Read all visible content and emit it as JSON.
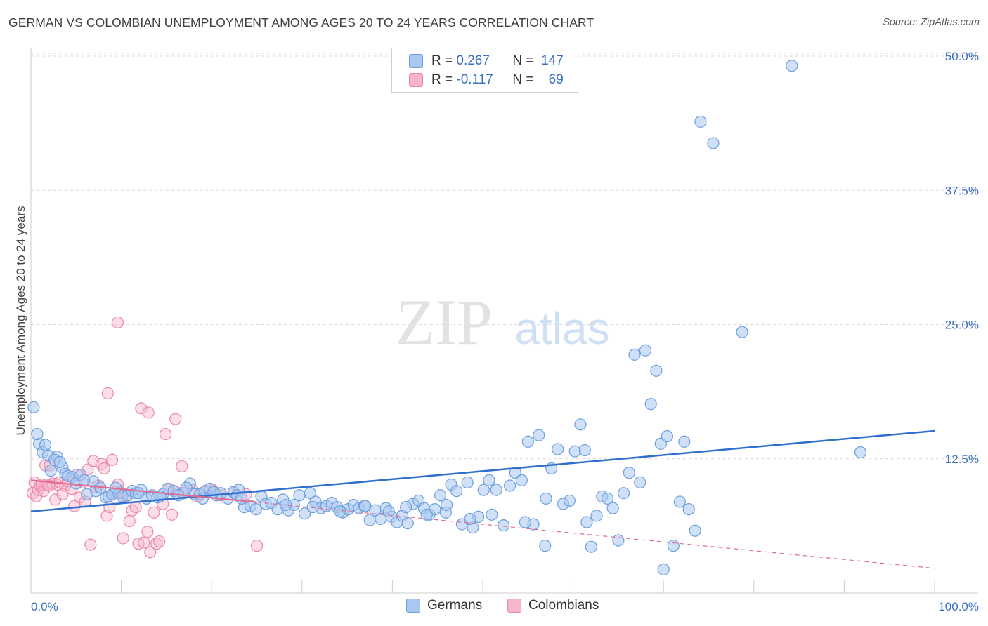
{
  "title": "GERMAN VS COLOMBIAN UNEMPLOYMENT AMONG AGES 20 TO 24 YEARS CORRELATION CHART",
  "source": "Source: ZipAtlas.com",
  "watermark": {
    "zip": "ZIP",
    "atlas": "atlas"
  },
  "legend": {
    "rows": [
      {
        "r_label": "R =",
        "r_value": "0.267",
        "n_label": "N =",
        "n_value": "147"
      },
      {
        "r_label": "R =",
        "r_value": "-0.117",
        "n_label": "N =",
        "n_value": "69"
      }
    ]
  },
  "colors": {
    "germans_fill": "#a9c8f0",
    "germans_stroke": "#6d9fe0",
    "germans_line": "#2f6fd0",
    "colombians_fill": "#f7b6ca",
    "colombians_stroke": "#ec87a8",
    "colombians_line": "#e06a90",
    "axis_label": "#3a6fc4",
    "grid": "#d9d9d9"
  },
  "chart_data": {
    "type": "scatter",
    "title": "GERMAN VS COLOMBIAN UNEMPLOYMENT AMONG AGES 20 TO 24 YEARS CORRELATION CHART",
    "xlabel": "",
    "ylabel": "Unemployment Among Ages 20 to 24 years",
    "xlim": [
      0,
      100
    ],
    "ylim": [
      0,
      50
    ],
    "x_tick_labels": [
      "0.0%",
      "100.0%"
    ],
    "y_ticks": [
      12.5,
      25.0,
      37.5,
      50.0
    ],
    "y_tick_labels": [
      "12.5%",
      "25.0%",
      "37.5%",
      "50.0%"
    ],
    "grid": true,
    "legend_position": "bottom-center",
    "series": [
      {
        "name": "Germans",
        "r": 0.267,
        "n": 147,
        "trend": {
          "x": [
            0,
            100
          ],
          "y": [
            7.6,
            15.1
          ]
        },
        "points": [
          [
            0.3,
            17.3
          ],
          [
            0.9,
            13.9
          ],
          [
            1.3,
            13.1
          ],
          [
            1.9,
            12.8
          ],
          [
            2.2,
            11.4
          ],
          [
            2.9,
            12.7
          ],
          [
            3.5,
            11.7
          ],
          [
            3.8,
            11.1
          ],
          [
            4.1,
            10.9
          ],
          [
            4.6,
            10.8
          ],
          [
            5.0,
            10.2
          ],
          [
            5.5,
            11.0
          ],
          [
            6.2,
            9.2
          ],
          [
            6.9,
            10.4
          ],
          [
            7.2,
            9.5
          ],
          [
            7.7,
            9.8
          ],
          [
            8.3,
            8.9
          ],
          [
            8.6,
            9.0
          ],
          [
            9.0,
            9.2
          ],
          [
            9.7,
            9.3
          ],
          [
            10.1,
            9.0
          ],
          [
            10.7,
            9.1
          ],
          [
            11.2,
            9.5
          ],
          [
            11.6,
            9.3
          ],
          [
            12.2,
            9.6
          ],
          [
            12.8,
            8.8
          ],
          [
            13.4,
            9.1
          ],
          [
            14.0,
            8.9
          ],
          [
            14.6,
            9.2
          ],
          [
            15.1,
            9.7
          ],
          [
            15.8,
            9.5
          ],
          [
            16.3,
            9.1
          ],
          [
            16.9,
            9.3
          ],
          [
            17.6,
            10.2
          ],
          [
            18.1,
            9.2
          ],
          [
            18.7,
            9.2
          ],
          [
            19.3,
            9.5
          ],
          [
            19.8,
            9.7
          ],
          [
            20.5,
            9.1
          ],
          [
            21.0,
            9.3
          ],
          [
            21.8,
            8.8
          ],
          [
            22.4,
            9.4
          ],
          [
            23.0,
            9.6
          ],
          [
            23.6,
            8.0
          ],
          [
            24.3,
            8.1
          ],
          [
            24.9,
            7.8
          ],
          [
            25.5,
            9.0
          ],
          [
            26.0,
            8.3
          ],
          [
            26.6,
            8.4
          ],
          [
            27.3,
            7.8
          ],
          [
            27.9,
            8.7
          ],
          [
            28.5,
            7.7
          ],
          [
            29.1,
            8.2
          ],
          [
            29.7,
            9.1
          ],
          [
            30.3,
            7.4
          ],
          [
            30.9,
            9.3
          ],
          [
            31.5,
            8.5
          ],
          [
            32.1,
            7.9
          ],
          [
            32.7,
            8.1
          ],
          [
            33.3,
            8.4
          ],
          [
            33.9,
            8.0
          ],
          [
            34.5,
            7.5
          ],
          [
            35.1,
            7.8
          ],
          [
            35.7,
            8.2
          ],
          [
            36.3,
            7.9
          ],
          [
            36.9,
            8.1
          ],
          [
            37.5,
            6.8
          ],
          [
            38.1,
            7.7
          ],
          [
            38.7,
            6.9
          ],
          [
            39.3,
            7.9
          ],
          [
            39.9,
            7.1
          ],
          [
            40.5,
            6.6
          ],
          [
            41.1,
            7.2
          ],
          [
            41.7,
            6.5
          ],
          [
            42.3,
            8.3
          ],
          [
            42.9,
            8.6
          ],
          [
            43.5,
            7.9
          ],
          [
            44.1,
            7.3
          ],
          [
            44.7,
            7.8
          ],
          [
            45.3,
            9.1
          ],
          [
            45.9,
            7.5
          ],
          [
            46.5,
            10.1
          ],
          [
            47.1,
            9.5
          ],
          [
            47.7,
            6.4
          ],
          [
            48.3,
            10.3
          ],
          [
            48.9,
            6.1
          ],
          [
            49.5,
            7.1
          ],
          [
            50.1,
            9.6
          ],
          [
            50.7,
            10.5
          ],
          [
            51.5,
            9.6
          ],
          [
            52.3,
            6.3
          ],
          [
            53.0,
            10.0
          ],
          [
            53.6,
            11.2
          ],
          [
            54.3,
            10.5
          ],
          [
            55.0,
            14.1
          ],
          [
            55.6,
            6.4
          ],
          [
            56.2,
            14.7
          ],
          [
            56.9,
            4.4
          ],
          [
            57.6,
            11.6
          ],
          [
            58.3,
            13.4
          ],
          [
            58.9,
            8.3
          ],
          [
            59.6,
            8.6
          ],
          [
            60.2,
            13.2
          ],
          [
            60.8,
            15.7
          ],
          [
            61.3,
            13.3
          ],
          [
            62.0,
            4.3
          ],
          [
            62.6,
            7.2
          ],
          [
            63.2,
            9.0
          ],
          [
            63.8,
            8.8
          ],
          [
            64.4,
            7.9
          ],
          [
            65.0,
            4.9
          ],
          [
            65.6,
            9.3
          ],
          [
            66.2,
            11.2
          ],
          [
            66.8,
            22.2
          ],
          [
            67.4,
            10.3
          ],
          [
            68.0,
            22.6
          ],
          [
            68.6,
            17.6
          ],
          [
            69.2,
            20.7
          ],
          [
            69.7,
            13.9
          ],
          [
            70.4,
            14.6
          ],
          [
            71.1,
            4.4
          ],
          [
            71.8,
            8.5
          ],
          [
            72.3,
            14.1
          ],
          [
            72.8,
            7.8
          ],
          [
            73.5,
            5.8
          ],
          [
            74.1,
            43.9
          ],
          [
            75.5,
            41.9
          ],
          [
            78.7,
            24.3
          ],
          [
            84.2,
            49.1
          ],
          [
            91.8,
            13.1
          ],
          [
            14.3,
            9.0
          ],
          [
            19.0,
            8.8
          ],
          [
            22.8,
            9.1
          ],
          [
            37.0,
            8.1
          ],
          [
            41.5,
            8.0
          ],
          [
            46.0,
            8.2
          ],
          [
            51.0,
            7.3
          ],
          [
            57.0,
            8.8
          ],
          [
            61.5,
            6.6
          ],
          [
            70.0,
            2.2
          ],
          [
            0.7,
            14.8
          ],
          [
            1.6,
            13.8
          ],
          [
            2.6,
            12.4
          ],
          [
            3.2,
            12.2
          ],
          [
            5.9,
            10.5
          ],
          [
            9.4,
            9.8
          ],
          [
            11.9,
            9.3
          ],
          [
            17.2,
            9.8
          ],
          [
            20.2,
            9.4
          ],
          [
            23.3,
            8.8
          ],
          [
            28.2,
            8.2
          ],
          [
            31.2,
            8.0
          ],
          [
            34.2,
            7.6
          ],
          [
            39.6,
            7.6
          ],
          [
            43.8,
            7.3
          ],
          [
            48.6,
            6.9
          ],
          [
            54.7,
            6.6
          ]
        ]
      },
      {
        "name": "Colombians",
        "r": -0.117,
        "n": 69,
        "trend": {
          "x": [
            0,
            100
          ],
          "y": [
            10.5,
            2.3
          ],
          "solid_until_x": 25
        },
        "points": [
          [
            0.2,
            9.3
          ],
          [
            0.4,
            10.3
          ],
          [
            0.6,
            9.0
          ],
          [
            0.8,
            9.6
          ],
          [
            1.0,
            10.0
          ],
          [
            1.2,
            10.1
          ],
          [
            1.4,
            9.5
          ],
          [
            1.6,
            11.9
          ],
          [
            1.8,
            10.1
          ],
          [
            2.1,
            11.9
          ],
          [
            2.4,
            10.2
          ],
          [
            2.7,
            8.7
          ],
          [
            2.9,
            10.1
          ],
          [
            3.2,
            10.3
          ],
          [
            3.5,
            9.2
          ],
          [
            3.8,
            10.0
          ],
          [
            4.1,
            10.4
          ],
          [
            4.5,
            9.7
          ],
          [
            4.8,
            8.1
          ],
          [
            5.1,
            11.0
          ],
          [
            5.4,
            8.9
          ],
          [
            5.7,
            10.3
          ],
          [
            6.0,
            8.5
          ],
          [
            6.3,
            11.5
          ],
          [
            6.6,
            4.5
          ],
          [
            6.9,
            12.3
          ],
          [
            7.2,
            9.9
          ],
          [
            7.5,
            10.0
          ],
          [
            7.8,
            12.0
          ],
          [
            8.1,
            11.6
          ],
          [
            8.4,
            7.2
          ],
          [
            8.7,
            8.0
          ],
          [
            9.0,
            12.4
          ],
          [
            9.3,
            9.4
          ],
          [
            9.6,
            10.1
          ],
          [
            9.9,
            9.4
          ],
          [
            10.2,
            5.1
          ],
          [
            10.5,
            9.0
          ],
          [
            10.9,
            6.7
          ],
          [
            11.2,
            7.7
          ],
          [
            11.6,
            8.0
          ],
          [
            11.9,
            4.6
          ],
          [
            12.2,
            17.2
          ],
          [
            12.5,
            4.7
          ],
          [
            12.9,
            5.7
          ],
          [
            13.2,
            3.8
          ],
          [
            13.6,
            7.5
          ],
          [
            13.9,
            4.6
          ],
          [
            14.2,
            4.8
          ],
          [
            14.6,
            8.3
          ],
          [
            14.9,
            14.8
          ],
          [
            15.3,
            9.7
          ],
          [
            15.6,
            7.3
          ],
          [
            16.0,
            16.2
          ],
          [
            16.3,
            9.3
          ],
          [
            16.7,
            11.8
          ],
          [
            17.0,
            9.5
          ],
          [
            9.6,
            25.2
          ],
          [
            8.5,
            18.6
          ],
          [
            13.0,
            16.8
          ],
          [
            17.9,
            9.6
          ],
          [
            18.5,
            9.0
          ],
          [
            19.2,
            9.4
          ],
          [
            20.1,
            9.6
          ],
          [
            21.0,
            9.1
          ],
          [
            22.5,
            9.3
          ],
          [
            23.8,
            9.2
          ],
          [
            25.0,
            4.4
          ],
          [
            2.0,
            10.0
          ]
        ]
      }
    ]
  }
}
